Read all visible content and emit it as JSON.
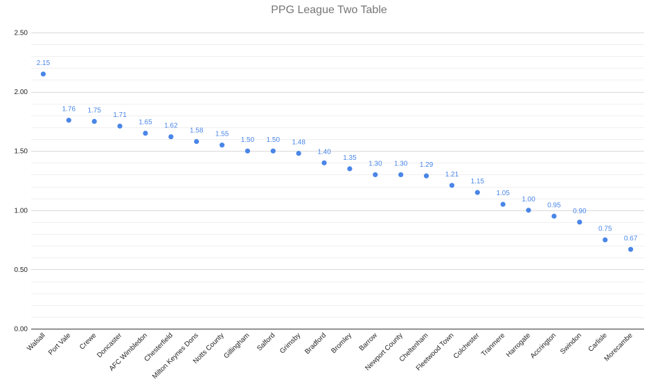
{
  "chart_data": {
    "type": "scatter",
    "title": "PPG League Two Table",
    "xlabel": "",
    "ylabel": "",
    "ylim": [
      0,
      2.5
    ],
    "yticks": [
      "0.00",
      "0.50",
      "1.00",
      "1.50",
      "2.00",
      "2.50"
    ],
    "grid": true,
    "legend": "none",
    "point_color": "#4a86e8",
    "categories": [
      "Walsall",
      "Port Vale",
      "Crewe",
      "Doncaster",
      "AFC Wimbledon",
      "Chesterfield",
      "Milton Keynes Dons",
      "Notts County",
      "Gillingham",
      "Salford",
      "Grimsby",
      "Bradford",
      "Bromley",
      "Barrow",
      "Newport County",
      "Cheltenham",
      "Fleetwood Town",
      "Colchester",
      "Tranmere",
      "Harrogate",
      "Accrington",
      "Swindon",
      "Carlisle",
      "Morecambe"
    ],
    "values": [
      2.15,
      1.76,
      1.75,
      1.71,
      1.65,
      1.62,
      1.58,
      1.55,
      1.5,
      1.5,
      1.48,
      1.4,
      1.35,
      1.3,
      1.3,
      1.29,
      1.21,
      1.15,
      1.05,
      1.0,
      0.95,
      0.9,
      0.75,
      0.67
    ],
    "labels": [
      "2.15",
      "1.76",
      "1.75",
      "1.71",
      "1.65",
      "1.62",
      "1.58",
      "1.55",
      "1.50",
      "1.50",
      "1.48",
      "1.40",
      "1.35",
      "1.30",
      "1.30",
      "1.29",
      "1.21",
      "1.15",
      "1.05",
      "1.00",
      "0.95",
      "0.90",
      "0.75",
      "0.67"
    ]
  }
}
